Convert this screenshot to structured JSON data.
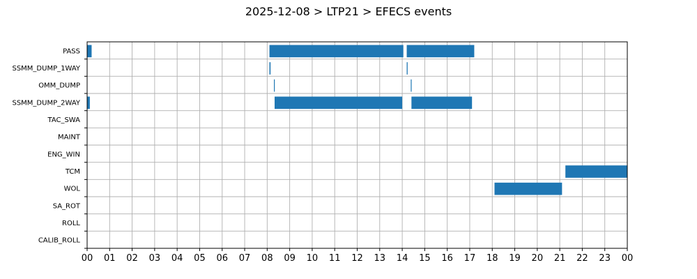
{
  "chart_data": {
    "type": "gantt",
    "title": "2025-12-08 > LTP21 > EFECS events",
    "xlabel": "",
    "ylabel": "",
    "x_unit": "hour",
    "xlim": [
      0,
      24
    ],
    "grid": true,
    "bar_color": "#1f77b4",
    "x_tick_labels": [
      "00",
      "01",
      "02",
      "03",
      "04",
      "05",
      "06",
      "07",
      "08",
      "09",
      "10",
      "11",
      "12",
      "13",
      "14",
      "15",
      "16",
      "17",
      "18",
      "19",
      "20",
      "21",
      "22",
      "23",
      "00"
    ],
    "categories": [
      "PASS",
      "SSMM_DUMP_1WAY",
      "OMM_DUMP",
      "SSMM_DUMP_2WAY",
      "TAC_SWA",
      "MAINT",
      "ENG_WIN",
      "TCM",
      "WOL",
      "SA_ROT",
      "ROLL",
      "CALIB_ROLL"
    ],
    "events": [
      {
        "category": "PASS",
        "start": 0.0,
        "end": 0.2
      },
      {
        "category": "PASS",
        "start": 8.1,
        "end": 14.05
      },
      {
        "category": "PASS",
        "start": 14.2,
        "end": 17.2
      },
      {
        "category": "SSMM_DUMP_1WAY",
        "start": 8.1,
        "end": 8.15
      },
      {
        "category": "SSMM_DUMP_1WAY",
        "start": 14.2,
        "end": 14.24
      },
      {
        "category": "OMM_DUMP",
        "start": 8.3,
        "end": 8.33
      },
      {
        "category": "OMM_DUMP",
        "start": 14.38,
        "end": 14.41
      },
      {
        "category": "SSMM_DUMP_2WAY",
        "start": 0.0,
        "end": 0.12
      },
      {
        "category": "SSMM_DUMP_2WAY",
        "start": 8.33,
        "end": 14.0
      },
      {
        "category": "SSMM_DUMP_2WAY",
        "start": 14.41,
        "end": 17.1
      },
      {
        "category": "TCM",
        "start": 21.25,
        "end": 24.0
      },
      {
        "category": "WOL",
        "start": 18.1,
        "end": 21.1
      }
    ]
  }
}
